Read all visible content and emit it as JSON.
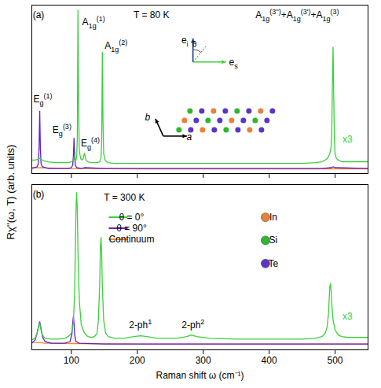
{
  "chart_data": [
    {
      "type": "line",
      "xlim": [
        40,
        550
      ],
      "xticks": [
        100,
        200,
        300,
        400,
        500
      ],
      "ylim": [
        0,
        100
      ],
      "tick_labels": false,
      "series": [
        {
          "name": "θ = 0°",
          "color": "#39d139",
          "x": [
            40,
            45,
            50,
            52,
            54,
            58,
            65,
            75,
            85,
            95,
            100,
            103,
            104,
            105,
            107,
            108,
            109,
            110,
            111,
            112,
            114,
            116,
            118,
            119,
            120,
            121,
            122,
            125,
            130,
            138,
            143,
            145,
            146,
            147,
            148,
            149,
            151,
            155,
            165,
            180,
            200,
            250,
            300,
            350,
            400,
            450,
            470,
            480,
            485,
            488,
            490,
            492,
            494,
            495,
            496,
            497,
            498,
            499,
            500,
            502,
            505,
            510,
            520,
            530,
            540,
            550
          ],
          "values": [
            8,
            8,
            8.5,
            9,
            8.5,
            7.5,
            7,
            6.5,
            6.5,
            6.5,
            7,
            7.5,
            10,
            8,
            8,
            10,
            20,
            97,
            40,
            14,
            9,
            8,
            9,
            11,
            12,
            10,
            8,
            7,
            6.5,
            6.5,
            7,
            9,
            20,
            72,
            30,
            12,
            8,
            6.5,
            6,
            6,
            6,
            6,
            6,
            6,
            6,
            6,
            6.5,
            7,
            8,
            9,
            10,
            12,
            16,
            25,
            55,
            75,
            45,
            20,
            12,
            9,
            8,
            7,
            7,
            7,
            7,
            7
          ]
        },
        {
          "name": "θ = 90°",
          "color": "#6020c8",
          "x": [
            40,
            48,
            50,
            51,
            52,
            53,
            54,
            56,
            65,
            80,
            95,
            100,
            102,
            103,
            104,
            105,
            106,
            108,
            115,
            120,
            150,
            200,
            300,
            400,
            480,
            495,
            497,
            500,
            550
          ],
          "values": [
            3,
            4,
            6,
            15,
            37,
            15,
            6,
            4,
            3,
            3,
            3,
            3.5,
            5,
            10,
            21,
            10,
            5,
            3.5,
            3,
            3.5,
            3,
            3,
            3,
            3,
            3,
            3.5,
            4,
            3.5,
            3
          ]
        },
        {
          "name": "Continuum",
          "color": "#f28c28",
          "x": [
            40,
            100,
            200,
            300,
            400,
            500,
            550
          ],
          "values": [
            3.5,
            3,
            2.8,
            2.8,
            2.8,
            2.8,
            2.8
          ]
        }
      ],
      "annotations": [
        {
          "parts": [
            {
              "text": "(a)"
            }
          ],
          "x": 42,
          "y": 92
        },
        {
          "parts": [
            {
              "text": "T = 80 K"
            }
          ],
          "x": 195,
          "y": 92
        },
        {
          "parts": [
            {
              "text": "E",
              "sub": "g",
              "sup": "(1)"
            }
          ],
          "x": 43,
          "y": 42
        },
        {
          "parts": [
            {
              "text": "E",
              "sub": "g",
              "sup": "(3)"
            }
          ],
          "x": 72,
          "y": 24
        },
        {
          "parts": [
            {
              "text": "E",
              "sub": "g",
              "sup": "(4)"
            }
          ],
          "x": 115,
          "y": 16
        },
        {
          "parts": [
            {
              "text": "A",
              "sub": "1g",
              "sup": "(1)"
            }
          ],
          "x": 117,
          "y": 88
        },
        {
          "parts": [
            {
              "text": "A",
              "sub": "1g",
              "sup": "(2)"
            }
          ],
          "x": 151,
          "y": 74
        },
        {
          "parts": [
            {
              "text": "A",
              "sub": "1g",
              "sup": "(3'')"
            },
            {
              "text": "+A",
              "sub": "1g",
              "sup": "(3')"
            },
            {
              "text": "+A",
              "sub": "1g",
              "sup": "(3)"
            }
          ],
          "x": 380,
          "y": 92
        },
        {
          "parts": [
            {
              "text": "x3"
            }
          ],
          "x": 512,
          "y": 18,
          "color": "#39d139"
        }
      ],
      "insets": {
        "polarization": {
          "incident": [
            {
              "text": "e",
              "sub": "i"
            }
          ],
          "scattered": [
            {
              "text": "e",
              "sub": "s"
            }
          ],
          "angle": "θ"
        },
        "lattice_axes": [
          "a",
          "b"
        ]
      }
    },
    {
      "type": "line",
      "xlim": [
        40,
        550
      ],
      "xticks": [
        100,
        200,
        300,
        400,
        500
      ],
      "ylim": [
        0,
        100
      ],
      "tick_labels": "x",
      "xlabel": "Raman shift ω (cm⁻¹)",
      "ylabel": "Rχ''(ω, T) (arb. units)",
      "legend": "left",
      "series": [
        {
          "name": "θ = 0°",
          "color": "#39d139",
          "x": [
            40,
            45,
            48,
            50,
            52,
            54,
            56,
            60,
            70,
            80,
            90,
            95,
            100,
            103,
            105,
            106,
            107,
            108,
            109,
            110,
            112,
            115,
            120,
            125,
            130,
            135,
            139,
            141,
            143,
            144,
            145,
            146,
            147,
            149,
            152,
            156,
            165,
            180,
            195,
            205,
            215,
            230,
            260,
            275,
            282,
            290,
            310,
            350,
            400,
            450,
            470,
            480,
            485,
            488,
            490,
            491,
            492,
            493,
            494,
            495,
            497,
            500,
            505,
            510,
            520,
            535,
            550
          ],
          "values": [
            6,
            7,
            10,
            14,
            16,
            12,
            9,
            7,
            6.5,
            6.5,
            7,
            8,
            10,
            16,
            35,
            60,
            85,
            95,
            85,
            60,
            30,
            15,
            10,
            8,
            7.5,
            8,
            10,
            18,
            40,
            62,
            68,
            58,
            38,
            18,
            10,
            8,
            7,
            7,
            8,
            8.5,
            8,
            7,
            7,
            8,
            9,
            8,
            7,
            6.5,
            6.5,
            6.5,
            7,
            8,
            10,
            14,
            22,
            30,
            38,
            40,
            36,
            28,
            18,
            12,
            9,
            8,
            7.5,
            7.5,
            7.5
          ]
        },
        {
          "name": "θ = 90°",
          "color": "#6020c8",
          "x": [
            40,
            45,
            48,
            50,
            52,
            54,
            56,
            60,
            70,
            90,
            98,
            101,
            102,
            103,
            104,
            105,
            107,
            112,
            150,
            200,
            300,
            400,
            500,
            550
          ],
          "values": [
            4,
            6,
            10,
            14,
            17,
            13,
            8,
            5,
            4,
            4,
            5,
            10,
            16,
            20,
            16,
            9,
            5,
            4,
            3.5,
            3.5,
            3.5,
            3.5,
            3.5,
            3.5
          ]
        },
        {
          "name": "Continuum",
          "color": "#f28c28",
          "x": [
            40,
            50,
            60,
            100,
            200,
            300,
            400,
            500,
            550
          ],
          "values": [
            4.5,
            4.5,
            4,
            3.8,
            3.5,
            3.5,
            3.5,
            3.5,
            3.5
          ]
        }
      ],
      "annotations": [
        {
          "parts": [
            {
              "text": "(b)"
            }
          ],
          "x": 42,
          "y": 92
        },
        {
          "parts": [
            {
              "text": "T = 300 K"
            }
          ],
          "x": 150,
          "y": 90
        },
        {
          "parts": [
            {
              "text": "2-ph",
              "sup": "1"
            }
          ],
          "x": 188,
          "y": 13
        },
        {
          "parts": [
            {
              "text": "2-ph",
              "sup": "2"
            }
          ],
          "x": 268,
          "y": 13
        },
        {
          "parts": [
            {
              "text": "x3"
            }
          ],
          "x": 512,
          "y": 18,
          "color": "#39d139"
        }
      ],
      "insets": {
        "atoms": [
          {
            "name": "In",
            "color": "#e8813a"
          },
          {
            "name": "Si",
            "color": "#2db82d"
          },
          {
            "name": "Te",
            "color": "#5a36c8"
          }
        ]
      }
    }
  ]
}
